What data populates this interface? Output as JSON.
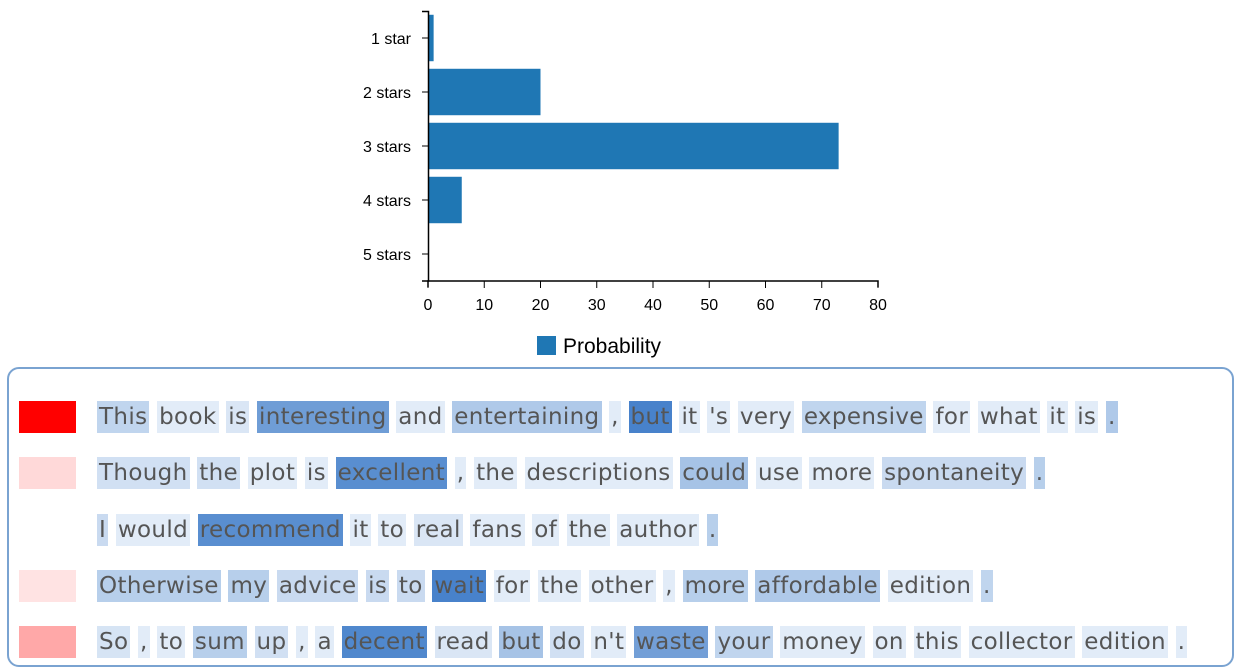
{
  "chart_data": {
    "type": "bar",
    "orientation": "horizontal",
    "categories": [
      "1 star",
      "2 stars",
      "3 stars",
      "4 stars",
      "5 stars"
    ],
    "series": [
      {
        "name": "Probability",
        "values": [
          1,
          20,
          73,
          6,
          0
        ],
        "color": "#1f77b4"
      }
    ],
    "xlim": [
      0,
      80
    ],
    "xticks": [
      "0",
      "10",
      "20",
      "30",
      "40",
      "50",
      "60",
      "70",
      "80"
    ],
    "grid": false,
    "legend_position": "bottom"
  },
  "sentences": [
    {
      "color": "#ff0000",
      "tokens": [
        [
          "This",
          0.25
        ],
        [
          "book",
          0.05
        ],
        [
          "is",
          0.1
        ],
        [
          "interesting",
          0.72
        ],
        [
          "and",
          0.05
        ],
        [
          "entertaining",
          0.35
        ],
        [
          ",",
          0.05
        ],
        [
          "but",
          0.95
        ],
        [
          "it",
          0.05
        ],
        [
          "'s",
          0.05
        ],
        [
          "very",
          0.05
        ],
        [
          "expensive",
          0.25
        ],
        [
          "for",
          0.05
        ],
        [
          "what",
          0.05
        ],
        [
          "it",
          0.05
        ],
        [
          "is",
          0.05
        ],
        [
          ".",
          0.35
        ]
      ]
    },
    {
      "color": "#ffd9d9",
      "tokens": [
        [
          "Though",
          0.15
        ],
        [
          "the",
          0.15
        ],
        [
          "plot",
          0.05
        ],
        [
          "is",
          0.05
        ],
        [
          "excellent",
          0.85
        ],
        [
          ",",
          0.05
        ],
        [
          "the",
          0.05
        ],
        [
          "descriptions",
          0.05
        ],
        [
          "could",
          0.4
        ],
        [
          "use",
          0.05
        ],
        [
          "more",
          0.05
        ],
        [
          "spontaneity",
          0.2
        ],
        [
          ".",
          0.3
        ]
      ]
    },
    {
      "color": "#ffffff",
      "tokens": [
        [
          "I",
          0.2
        ],
        [
          "would",
          0.05
        ],
        [
          "recommend",
          0.85
        ],
        [
          "it",
          0.05
        ],
        [
          "to",
          0.05
        ],
        [
          "real",
          0.1
        ],
        [
          "fans",
          0.05
        ],
        [
          "of",
          0.05
        ],
        [
          "the",
          0.05
        ],
        [
          "author",
          0.05
        ],
        [
          ".",
          0.3
        ]
      ]
    },
    {
      "color": "#ffe3e3",
      "tokens": [
        [
          "Otherwise",
          0.3
        ],
        [
          "my",
          0.3
        ],
        [
          "advice",
          0.2
        ],
        [
          "is",
          0.2
        ],
        [
          "to",
          0.2
        ],
        [
          "wait",
          0.95
        ],
        [
          "for",
          0.05
        ],
        [
          "the",
          0.05
        ],
        [
          "other",
          0.05
        ],
        [
          ",",
          0.05
        ],
        [
          "more",
          0.3
        ],
        [
          "affordable",
          0.35
        ],
        [
          "edition",
          0.05
        ],
        [
          ".",
          0.25
        ]
      ]
    },
    {
      "color": "#ffa8a8",
      "tokens": [
        [
          "So",
          0.12
        ],
        [
          ",",
          0.05
        ],
        [
          "to",
          0.05
        ],
        [
          "sum",
          0.3
        ],
        [
          "up",
          0.15
        ],
        [
          ",",
          0.05
        ],
        [
          "a",
          0.05
        ],
        [
          "decent",
          0.9
        ],
        [
          "read",
          0.1
        ],
        [
          "but",
          0.4
        ],
        [
          "do",
          0.15
        ],
        [
          "n't",
          0.05
        ],
        [
          "waste",
          0.7
        ],
        [
          "your",
          0.25
        ],
        [
          "money",
          0.05
        ],
        [
          "on",
          0.05
        ],
        [
          "this",
          0.05
        ],
        [
          "collector",
          0.05
        ],
        [
          "edition",
          0.05
        ],
        [
          ".",
          0.05
        ]
      ]
    }
  ]
}
